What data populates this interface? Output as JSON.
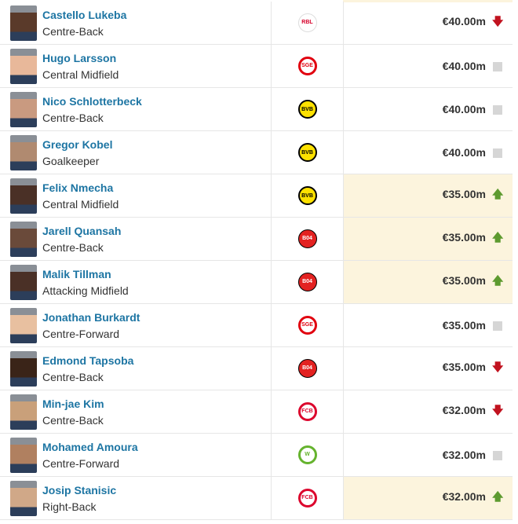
{
  "colors": {
    "name": "#1d75a3",
    "highlight": "#fcf4dd",
    "up": "#5d9a2f",
    "down": "#c1121f",
    "neutral": "#d6d6d6"
  },
  "rows": [
    {
      "name": "Castello Lukeba",
      "position": "Centre-Back",
      "club": "RB Leipzig",
      "value": "€40.00m",
      "trend": "down",
      "highlight": false
    },
    {
      "name": "Hugo Larsson",
      "position": "Central Midfield",
      "club": "Eintracht Frankfurt",
      "value": "€40.00m",
      "trend": "none",
      "highlight": false
    },
    {
      "name": "Nico Schlotterbeck",
      "position": "Centre-Back",
      "club": "Borussia Dortmund",
      "value": "€40.00m",
      "trend": "none",
      "highlight": false
    },
    {
      "name": "Gregor Kobel",
      "position": "Goalkeeper",
      "club": "Borussia Dortmund",
      "value": "€40.00m",
      "trend": "none",
      "highlight": false
    },
    {
      "name": "Felix Nmecha",
      "position": "Central Midfield",
      "club": "Borussia Dortmund",
      "value": "€35.00m",
      "trend": "up",
      "highlight": true
    },
    {
      "name": "Jarell Quansah",
      "position": "Centre-Back",
      "club": "Bayer Leverkusen",
      "value": "€35.00m",
      "trend": "up",
      "highlight": true
    },
    {
      "name": "Malik Tillman",
      "position": "Attacking Midfield",
      "club": "Bayer Leverkusen",
      "value": "€35.00m",
      "trend": "up",
      "highlight": true
    },
    {
      "name": "Jonathan Burkardt",
      "position": "Centre-Forward",
      "club": "Eintracht Frankfurt",
      "value": "€35.00m",
      "trend": "none",
      "highlight": false
    },
    {
      "name": "Edmond Tapsoba",
      "position": "Centre-Back",
      "club": "Bayer Leverkusen",
      "value": "€35.00m",
      "trend": "down",
      "highlight": false
    },
    {
      "name": "Min-jae Kim",
      "position": "Centre-Back",
      "club": "Bayern Munich",
      "value": "€32.00m",
      "trend": "down",
      "highlight": false
    },
    {
      "name": "Mohamed Amoura",
      "position": "Centre-Forward",
      "club": "VfL Wolfsburg",
      "value": "€32.00m",
      "trend": "none",
      "highlight": false
    },
    {
      "name": "Josip Stanisic",
      "position": "Right-Back",
      "club": "Bayern Munich",
      "value": "€32.00m",
      "trend": "up",
      "highlight": true
    }
  ]
}
